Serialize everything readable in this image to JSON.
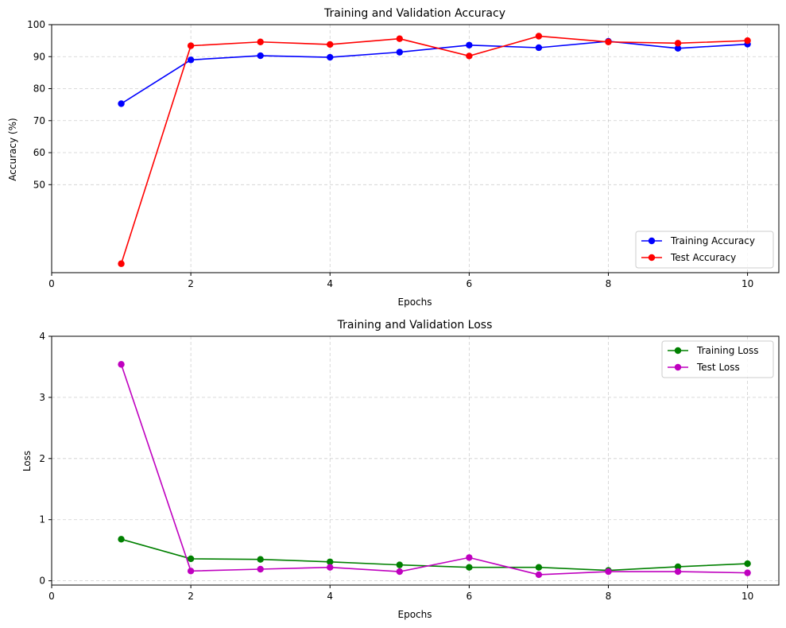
{
  "chart_data": [
    {
      "type": "line",
      "title": "Training and Validation Accuracy",
      "xlabel": "Epochs",
      "ylabel": "Accuracy (%)",
      "xlim": [
        0,
        10.45
      ],
      "ylim": [
        22.5,
        100
      ],
      "xticks": [
        0,
        2,
        4,
        6,
        8,
        10
      ],
      "yticks": [
        50,
        60,
        70,
        80,
        90,
        100
      ],
      "grid": true,
      "legend_position": "lower-right",
      "x": [
        1,
        2,
        3,
        4,
        5,
        6,
        7,
        8,
        9,
        10
      ],
      "series": [
        {
          "name": "Training Accuracy",
          "color": "#0000ff",
          "values": [
            75.3,
            89.0,
            90.3,
            89.8,
            91.4,
            93.6,
            92.8,
            94.8,
            92.6,
            93.9
          ]
        },
        {
          "name": "Test Accuracy",
          "color": "#ff0000",
          "values": [
            25.3,
            93.4,
            94.6,
            93.8,
            95.6,
            90.2,
            96.4,
            94.6,
            94.2,
            95.0
          ]
        }
      ]
    },
    {
      "type": "line",
      "title": "Training and Validation Loss",
      "xlabel": "Epochs",
      "ylabel": "Loss",
      "xlim": [
        0,
        10.45
      ],
      "ylim": [
        -0.07,
        4
      ],
      "xticks": [
        0,
        2,
        4,
        6,
        8,
        10
      ],
      "yticks": [
        0,
        1,
        2,
        3,
        4
      ],
      "grid": true,
      "legend_position": "upper-right",
      "x": [
        1,
        2,
        3,
        4,
        5,
        6,
        7,
        8,
        9,
        10
      ],
      "series": [
        {
          "name": "Training Loss",
          "color": "#008000",
          "values": [
            0.68,
            0.36,
            0.35,
            0.31,
            0.26,
            0.22,
            0.22,
            0.17,
            0.23,
            0.28
          ]
        },
        {
          "name": "Test Loss",
          "color": "#bf00bf",
          "values": [
            3.54,
            0.16,
            0.19,
            0.22,
            0.15,
            0.38,
            0.1,
            0.15,
            0.15,
            0.13
          ]
        }
      ]
    }
  ]
}
